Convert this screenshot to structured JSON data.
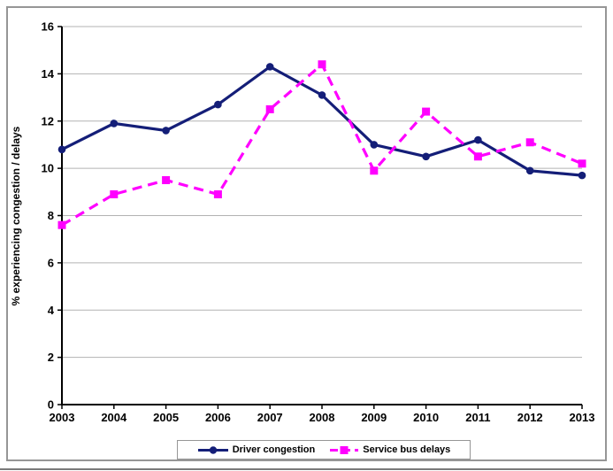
{
  "chart_data": {
    "type": "line",
    "title": "",
    "xlabel": "",
    "ylabel": "% experiencing congestion / delays",
    "categories": [
      "2003",
      "2004",
      "2005",
      "2006",
      "2007",
      "2008",
      "2009",
      "2010",
      "2011",
      "2012",
      "2013"
    ],
    "series": [
      {
        "name": "Driver congestion",
        "color": "#141e78",
        "marker": "circle",
        "line_style": "solid",
        "values": [
          10.8,
          11.9,
          11.6,
          12.7,
          14.3,
          13.1,
          11.0,
          10.5,
          11.2,
          9.9,
          9.7
        ]
      },
      {
        "name": "Service bus delays",
        "color": "#ff00ff",
        "marker": "square",
        "line_style": "dashed",
        "values": [
          7.6,
          8.9,
          9.5,
          8.9,
          12.5,
          14.4,
          9.9,
          12.4,
          10.5,
          11.1,
          10.2
        ]
      }
    ],
    "ylim": [
      0,
      16
    ],
    "ytick_step": 2,
    "yticks": [
      0,
      2,
      4,
      6,
      8,
      10,
      12,
      14,
      16
    ],
    "grid": "horizontal",
    "legend_position": "bottom",
    "colors": {
      "gridline": "#b3b3b3",
      "axis": "#000000",
      "tick_label": "#000000",
      "frame_border": "#969696",
      "background": "#ffffff"
    }
  }
}
